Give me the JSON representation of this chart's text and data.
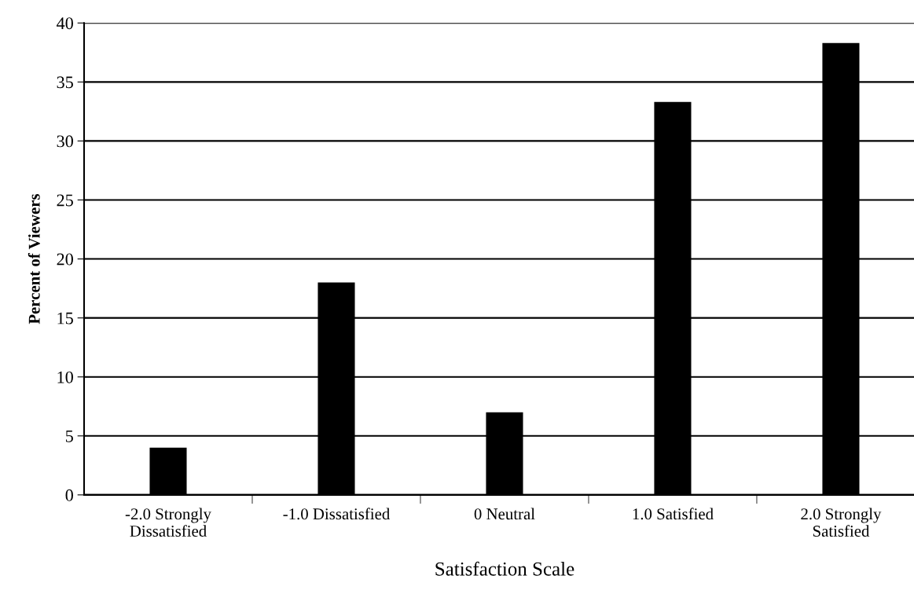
{
  "chart_data": {
    "type": "bar",
    "xlabel": "Satisfaction Scale",
    "ylabel": "Percent of Viewers",
    "categories": [
      "-2.0 Strongly\nDissatisfied",
      "-1.0 Dissatisfied",
      "0 Neutral",
      "1.0 Satisfied",
      "2.0 Strongly\nSatisfied"
    ],
    "values": [
      4,
      18,
      7,
      33.3,
      38.3
    ],
    "color": "#000000",
    "ylim": [
      0,
      40
    ],
    "yticks": [
      0,
      5,
      10,
      15,
      20,
      25,
      30,
      35,
      40
    ],
    "grid": "y",
    "legend": false
  }
}
